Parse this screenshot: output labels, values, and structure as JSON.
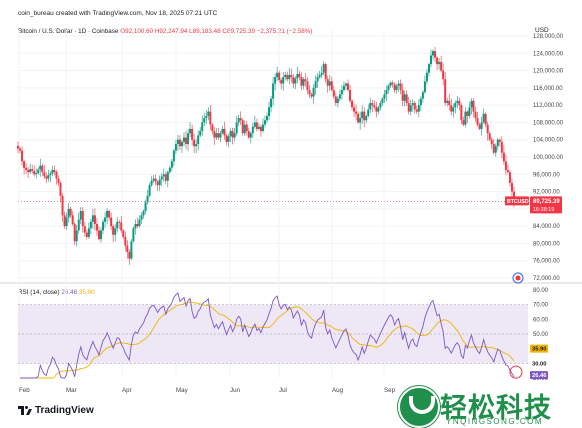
{
  "header": {
    "credit": "coin_bureau created with TradingView.com, Nov 18, 2025 07:21 UTC"
  },
  "info": {
    "symbol": "Bitcoin / U.S. Dollar · 1D · Coinbase",
    "ohlc": "O92,100.60 H92,247.94 L89,183.48 C89,725.39 −2,375.21 (−2.58%)"
  },
  "price_axis": {
    "currency": "USD",
    "ticks": [
      "128,000.00",
      "124,000.00",
      "120,000.00",
      "116,000.00",
      "112,000.00",
      "108,000.00",
      "104,000.00",
      "100,000.00",
      "96,000.00",
      "92,000.00",
      "88,000.00",
      "84,000.00",
      "80,000.00",
      "76,000.00",
      "72,000.00"
    ]
  },
  "price_badge": {
    "symbol": "BTCUSD",
    "price": "89,725.39",
    "countdown": "16:38:19"
  },
  "time_axis": {
    "labels": [
      "Feb",
      "Mar",
      "Apr",
      "May",
      "Jun",
      "Jul",
      "Aug",
      "Sep"
    ]
  },
  "rsi": {
    "label": "RSI (14, close)",
    "rsi_value": "26.46",
    "ma_value": "35.90",
    "ticks": [
      "80.00",
      "70.00",
      "60.00",
      "50.00",
      "40.00",
      "30.00",
      "20.00"
    ],
    "badge_rsi": "26.46",
    "badge_ma": "35.90",
    "badge_30": "30.00",
    "badge_20": "20.00",
    "colors": {
      "rsi": "#7e57c2",
      "ma": "#f2b400",
      "band": "#ede7f6"
    }
  },
  "brand": {
    "logo_text": "TradingView"
  },
  "watermark": {
    "cn": "轻松科技",
    "en": "YNQINGSONG.COM"
  },
  "chart_data": {
    "type": "candlestick",
    "title": "Bitcoin / U.S. Dollar · 1D · Coinbase",
    "ylabel": "USD",
    "ylim": [
      72000,
      128000
    ],
    "x_labels": [
      "Feb",
      "Mar",
      "Apr",
      "May",
      "Jun",
      "Jul",
      "Aug",
      "Sep"
    ],
    "colors": {
      "up": "#089981",
      "down": "#f23645"
    },
    "series": [
      {
        "name": "BTCUSD close (approx.)",
        "values": [
          102000,
          101500,
          99000,
          97500,
          97000,
          96500,
          97200,
          96800,
          96000,
          96300,
          97100,
          98000,
          96500,
          95500,
          95000,
          95800,
          96200,
          97000,
          96500,
          95000,
          94000,
          91000,
          86500,
          84000,
          86000,
          88000,
          86500,
          84500,
          80500,
          83000,
          85500,
          87500,
          84000,
          82500,
          81500,
          83500,
          85000,
          86500,
          84500,
          83000,
          81000,
          83000,
          85000,
          86000,
          87500,
          86000,
          84000,
          82000,
          83500,
          85000,
          84800,
          83000,
          81500,
          79500,
          78000,
          76500,
          80500,
          83500,
          84500,
          84000,
          85500,
          86500,
          87500,
          89500,
          91000,
          93500,
          94500,
          95000,
          94300,
          93500,
          94800,
          95500,
          96000,
          94500,
          96500,
          97500,
          99000,
          101500,
          103000,
          104000,
          102500,
          103500,
          104500,
          103000,
          105500,
          106500,
          104000,
          102500,
          103000,
          105000,
          106000,
          108000,
          109000,
          109500,
          110500,
          107500,
          106000,
          104500,
          105500,
          104500,
          105500,
          106500,
          105000,
          103500,
          104800,
          106000,
          104500,
          105500,
          108000,
          109000,
          108500,
          105500,
          107500,
          106000,
          104500,
          105500,
          107000,
          108000,
          106500,
          107000,
          106000,
          107500,
          108500,
          109500,
          111500,
          113500,
          117000,
          118500,
          119500,
          117800,
          117000,
          118500,
          119000,
          118000,
          119000,
          118500,
          117000,
          118200,
          119200,
          118500,
          116500,
          118000,
          117500,
          115500,
          114500,
          114000,
          116000,
          117500,
          118500,
          119000,
          119500,
          121500,
          118000,
          116500,
          117500,
          115500,
          114000,
          112500,
          113500,
          114500,
          115500,
          116500,
          117000,
          115500,
          113000,
          111500,
          110500,
          110000,
          108000,
          109000,
          110500,
          108500,
          109500,
          111000,
          112500,
          112000,
          111500,
          110500,
          111500,
          112500,
          113500,
          114500,
          115500,
          116500,
          117200,
          116800,
          115500,
          116500,
          117000,
          115500,
          113000,
          114500,
          112500,
          110500,
          112000,
          112500,
          111000,
          110500,
          112000,
          113500,
          115000,
          117500,
          119500,
          121500,
          123500,
          124500,
          123000,
          121500,
          122000,
          120000,
          118000,
          112500,
          113000,
          112000,
          110500,
          111500,
          112500,
          113000,
          112000,
          108500,
          107500,
          110500,
          109500,
          111500,
          113000,
          110500,
          109000,
          107500,
          106500,
          108000,
          110000,
          107500,
          105500,
          104000,
          103000,
          101000,
          102500,
          104000,
          103500,
          101000,
          99000,
          97000,
          96500,
          94000,
          92000,
          89725
        ]
      }
    ]
  }
}
